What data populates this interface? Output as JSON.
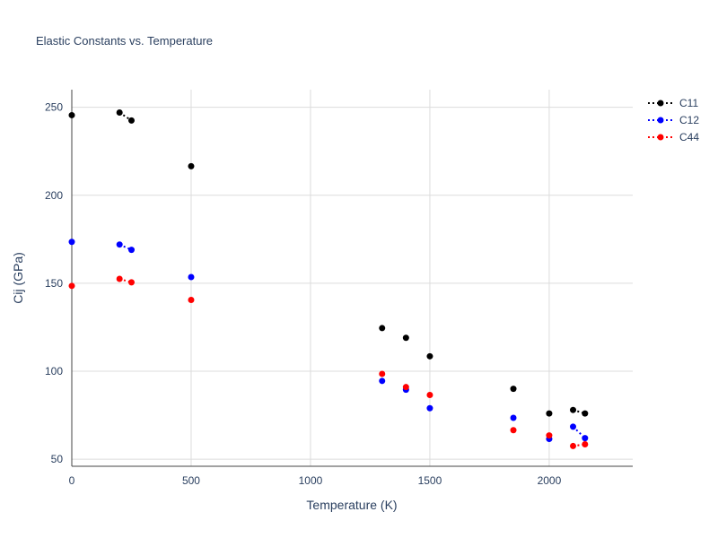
{
  "chart_data": {
    "type": "scatter",
    "title": "Elastic Constants vs. Temperature",
    "xlabel": "Temperature (K)",
    "ylabel": "Cij (GPa)",
    "xlim": [
      0,
      2350
    ],
    "ylim": [
      46,
      260
    ],
    "xticks": [
      0,
      500,
      1000,
      1500,
      2000
    ],
    "yticks": [
      50,
      100,
      150,
      200,
      250
    ],
    "grid": true,
    "legend": "top-right",
    "series": [
      {
        "name": "C11",
        "color": "#000000",
        "points": [
          {
            "x": 0,
            "y": 245.5
          },
          {
            "x": 200,
            "y": 247
          },
          {
            "x": 250,
            "y": 242.5
          },
          {
            "x": 500,
            "y": 216.5
          },
          {
            "x": 1300,
            "y": 124.5
          },
          {
            "x": 1400,
            "y": 119
          },
          {
            "x": 1500,
            "y": 108.5
          },
          {
            "x": 1850,
            "y": 90
          },
          {
            "x": 2000,
            "y": 76
          },
          {
            "x": 2100,
            "y": 78
          },
          {
            "x": 2150,
            "y": 76
          }
        ],
        "dotted_segments": [
          [
            200,
            250
          ],
          [
            2100,
            2150
          ]
        ]
      },
      {
        "name": "C12",
        "color": "#0000ff",
        "points": [
          {
            "x": 0,
            "y": 173.5
          },
          {
            "x": 200,
            "y": 172
          },
          {
            "x": 250,
            "y": 169
          },
          {
            "x": 500,
            "y": 153.5
          },
          {
            "x": 1300,
            "y": 94.5
          },
          {
            "x": 1400,
            "y": 89.5
          },
          {
            "x": 1500,
            "y": 79
          },
          {
            "x": 1850,
            "y": 73.5
          },
          {
            "x": 2000,
            "y": 61.5
          },
          {
            "x": 2100,
            "y": 68.5
          },
          {
            "x": 2150,
            "y": 62
          }
        ],
        "dotted_segments": [
          [
            200,
            250
          ],
          [
            2100,
            2150
          ]
        ]
      },
      {
        "name": "C44",
        "color": "#ff0000",
        "points": [
          {
            "x": 0,
            "y": 148.5
          },
          {
            "x": 200,
            "y": 152.5
          },
          {
            "x": 250,
            "y": 150.5
          },
          {
            "x": 500,
            "y": 140.5
          },
          {
            "x": 1300,
            "y": 98.5
          },
          {
            "x": 1400,
            "y": 91
          },
          {
            "x": 1500,
            "y": 86.5
          },
          {
            "x": 1850,
            "y": 66.5
          },
          {
            "x": 2000,
            "y": 63.5
          },
          {
            "x": 2100,
            "y": 57.5
          },
          {
            "x": 2150,
            "y": 58.5
          }
        ],
        "dotted_segments": [
          [
            200,
            250
          ],
          [
            2100,
            2150
          ]
        ]
      }
    ]
  }
}
